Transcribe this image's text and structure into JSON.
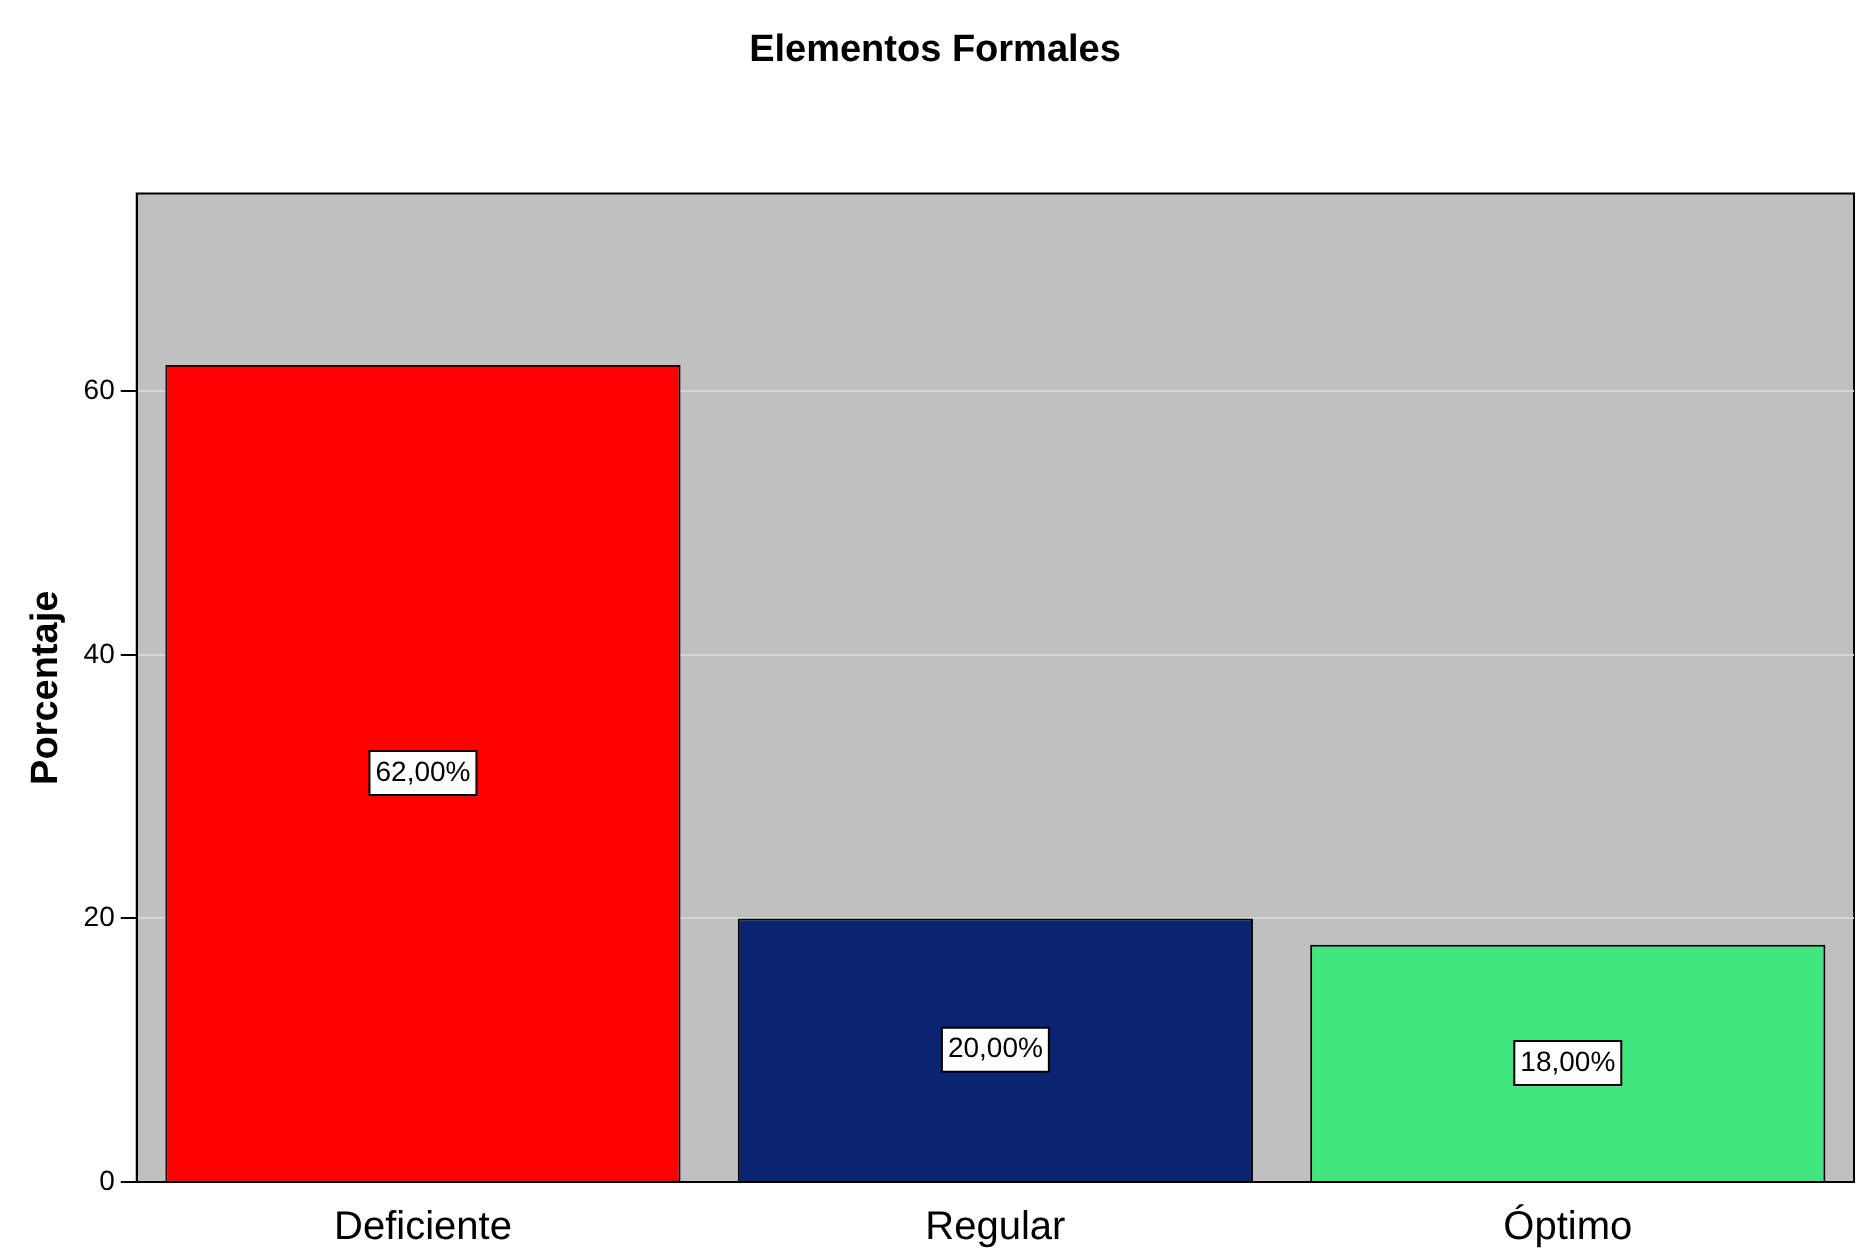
{
  "chart_data": {
    "type": "bar",
    "title": "Elementos Formales",
    "ylabel": "Porcentaje",
    "categories": [
      "Deficiente",
      "Regular",
      "Óptimo"
    ],
    "values": [
      62,
      20,
      18
    ],
    "colors": [
      "#ff0000",
      "#0a2472",
      "#42e67e"
    ],
    "value_labels": [
      "62,00%",
      "20,00%",
      "18,00%"
    ],
    "ylim": [
      0,
      75
    ],
    "yticks": [
      0,
      20,
      40,
      60
    ],
    "grid": "y",
    "legend": false
  }
}
